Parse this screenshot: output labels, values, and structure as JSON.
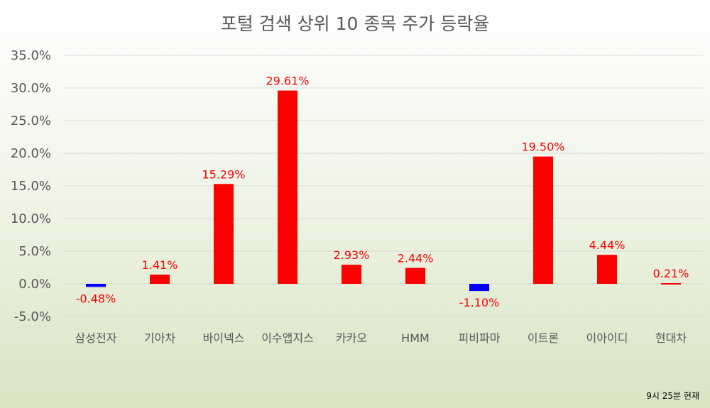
{
  "chart_data": {
    "type": "bar",
    "title": "포털 검색 상위 10 종목 주가 등락율",
    "categories": [
      "삼성전자",
      "기아차",
      "바이넥스",
      "이수앱지스",
      "카카오",
      "HMM",
      "피비파마",
      "이트론",
      "이아이디",
      "현대차"
    ],
    "values": [
      -0.48,
      1.41,
      15.29,
      29.61,
      2.93,
      2.44,
      -1.1,
      19.5,
      4.44,
      0.21
    ],
    "value_labels": [
      "-0.48%",
      "1.41%",
      "15.29%",
      "29.61%",
      "2.93%",
      "2.44%",
      "-1.10%",
      "19.50%",
      "4.44%",
      "0.21%"
    ],
    "ylim": [
      -5,
      35
    ],
    "yticks": [
      35,
      30,
      25,
      20,
      15,
      10,
      5,
      0,
      -5
    ],
    "ytick_labels": [
      "35.0%",
      "30.0%",
      "25.0%",
      "20.0%",
      "15.0%",
      "10.0%",
      "5.0%",
      "0.0%",
      "-5.0%"
    ],
    "grid": true,
    "colors": {
      "positive": "#ff0000",
      "negative": "#0000ff",
      "label": "#ff0000"
    },
    "note": "9시 25분 현재"
  }
}
